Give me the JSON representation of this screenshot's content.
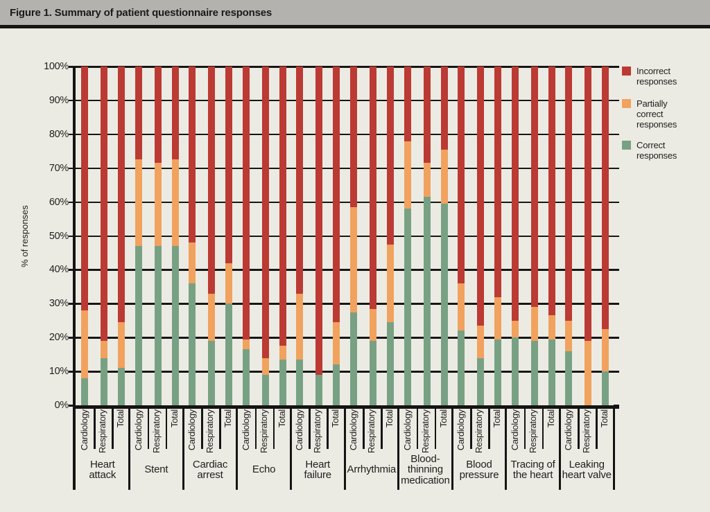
{
  "figure": {
    "title": "Figure 1. Summary of patient questionnaire responses"
  },
  "y_axis": {
    "title": "% of responses",
    "tick_labels": [
      "100%",
      "90%",
      "80%",
      "70%",
      "60%",
      "50%",
      "40%",
      "30%",
      "20%",
      "10%",
      "0%"
    ]
  },
  "legend": {
    "items": [
      {
        "label": "Incorrect responses",
        "color": "#bb3a33"
      },
      {
        "label": "Partially correct responses",
        "color": "#f1a25e"
      },
      {
        "label": "Correct responses",
        "color": "#78a184"
      }
    ]
  },
  "chart_data": {
    "type": "bar",
    "stacked": true,
    "unit": "percent",
    "title": "Figure 1. Summary of patient questionnaire responses",
    "ylabel": "% of responses",
    "ylim": [
      0,
      100
    ],
    "grid": true,
    "legend_position": "right",
    "categories": [
      "Heart attack",
      "Stent",
      "Cardiac arrest",
      "Echo",
      "Heart failure",
      "Arrhythmia",
      "Blood-thinning medication",
      "Blood pressure",
      "Tracing of the heart",
      "Leaking heart valve"
    ],
    "category_display": [
      "Heart\nattack",
      "Stent",
      "Cardiac\narrest",
      "Echo",
      "Heart\nfailure",
      "Arrhythmia",
      "Blood-\nthinning\nmedication",
      "Blood\npressure",
      "Tracing of\nthe heart",
      "Leaking\nheart valve"
    ],
    "sub_categories": [
      "Cardiology",
      "Respiratory",
      "Total"
    ],
    "series": [
      {
        "name": "Correct responses",
        "color": "#78a184",
        "values": [
          [
            8,
            14,
            11
          ],
          [
            47,
            47,
            47
          ],
          [
            36,
            19,
            30
          ],
          [
            16.5,
            9,
            13.5
          ],
          [
            13.5,
            9,
            12
          ],
          [
            27.5,
            19,
            24.5
          ],
          [
            58,
            61.5,
            59.5
          ],
          [
            22,
            14,
            19.5
          ],
          [
            20,
            19,
            19.5
          ],
          [
            16,
            0,
            10
          ]
        ]
      },
      {
        "name": "Partially correct responses",
        "color": "#f1a25e",
        "values": [
          [
            20,
            5,
            13.5
          ],
          [
            25.5,
            24.5,
            25.5
          ],
          [
            12,
            14,
            12
          ],
          [
            3,
            5,
            4
          ],
          [
            19.5,
            0,
            12.5
          ],
          [
            31,
            9.5,
            23
          ],
          [
            20,
            10,
            16
          ],
          [
            14,
            9.5,
            12.5
          ],
          [
            5,
            10,
            7
          ],
          [
            9,
            19,
            12.5
          ]
        ]
      },
      {
        "name": "Incorrect responses",
        "color": "#bb3a33",
        "values": [
          [
            72,
            81,
            75.5
          ],
          [
            27.5,
            28.5,
            27.5
          ],
          [
            52,
            67,
            58
          ],
          [
            80.5,
            86,
            82.5
          ],
          [
            67,
            91,
            75.5
          ],
          [
            41.5,
            71.5,
            52.5
          ],
          [
            22,
            28.5,
            24.5
          ],
          [
            64,
            76.5,
            68
          ],
          [
            75,
            71,
            73.5
          ],
          [
            75,
            81,
            77.5
          ]
        ]
      }
    ]
  },
  "colors": {
    "page_bg": "#ecebe3",
    "titlebar_bg": "#b4b2af",
    "axis": "#161616",
    "text": "#1d1d1d"
  }
}
